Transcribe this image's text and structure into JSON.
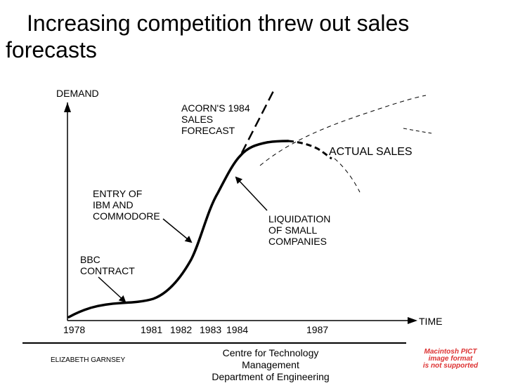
{
  "slide": {
    "title": "Increasing competition threw out sales forecasts"
  },
  "diagram": {
    "y_axis_label": "DEMAND",
    "x_axis_label": "TIME",
    "years": [
      "1978",
      "1981",
      "1982",
      "1983",
      "1984",
      "1987"
    ],
    "annotations": {
      "forecast": "ACORN'S 1984\nSALES\nFORECAST",
      "actual": "ACTUAL SALES",
      "ibm": "ENTRY OF\nIBM AND\nCOMMODORE",
      "liquidation": "LIQUIDATION\nOF SMALL\nCOMPANIES",
      "bbc": "BBC\nCONTRACT"
    }
  },
  "footer": {
    "author": "ELIZABETH GARNSEY",
    "centre_line1": "Centre for Technology",
    "centre_line2": "Management",
    "centre_line3": "Department of Engineering",
    "placeholder_line1": "Macintosh PICT",
    "placeholder_line2": "image format",
    "placeholder_line3": "is not supported"
  }
}
